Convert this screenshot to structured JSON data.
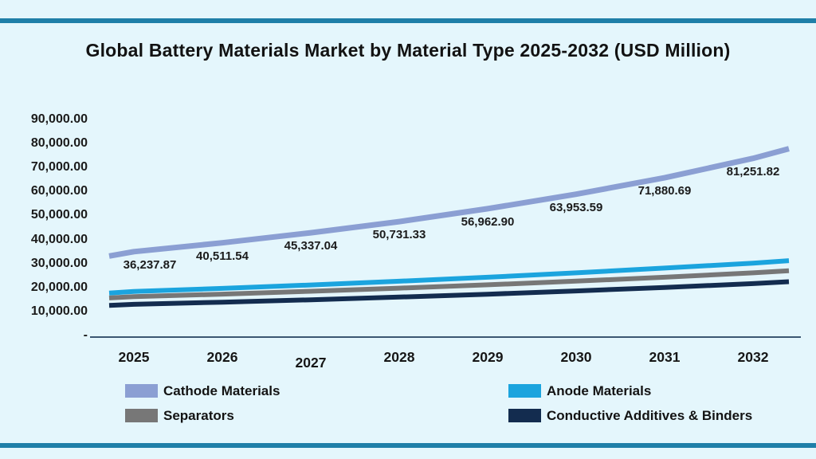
{
  "title": "Global Battery Materials Market by Material Type 2025-2032 (USD Million)",
  "chart_data": {
    "type": "line",
    "title": "Global Battery Materials Market by Material Type 2025-2032 (USD Million)",
    "unit": "USD Million",
    "categories": [
      "2025",
      "2026",
      "2027",
      "2028",
      "2029",
      "2030",
      "2031",
      "2032"
    ],
    "y_ticks": [
      "90,000.00",
      "80,000.00",
      "70,000.00",
      "60,000.00",
      "50,000.00",
      "40,000.00",
      "30,000.00",
      "20,000.00",
      "10,000.00",
      "-"
    ],
    "ylim": [
      0,
      90000
    ],
    "grid": false,
    "legend_position": "bottom",
    "series": [
      {
        "name": "Cathode Materials",
        "color": "#8b9fd3",
        "values": [
          36237.87,
          40511.54,
          45337.04,
          50731.33,
          56962.9,
          63953.59,
          71880.69,
          81251.82
        ],
        "labels": [
          "36,237.87",
          "40,511.54",
          "45,337.04",
          "50,731.33",
          "56,962.90",
          "63,953.59",
          "71,880.69",
          "81,251.82"
        ]
      },
      {
        "name": "Anode Materials",
        "color": "#1ba4de",
        "values": [
          17000,
          18500,
          20150,
          21950,
          23900,
          26000,
          28300,
          30700
        ]
      },
      {
        "name": "Separators",
        "color": "#777777",
        "values": [
          14500,
          15750,
          17100,
          18600,
          20250,
          22000,
          23900,
          26000
        ]
      },
      {
        "name": "Conductive Additives & Binders",
        "color": "#132c4f",
        "values": [
          10800,
          11850,
          13000,
          14300,
          15700,
          17250,
          18950,
          20800
        ]
      }
    ]
  }
}
